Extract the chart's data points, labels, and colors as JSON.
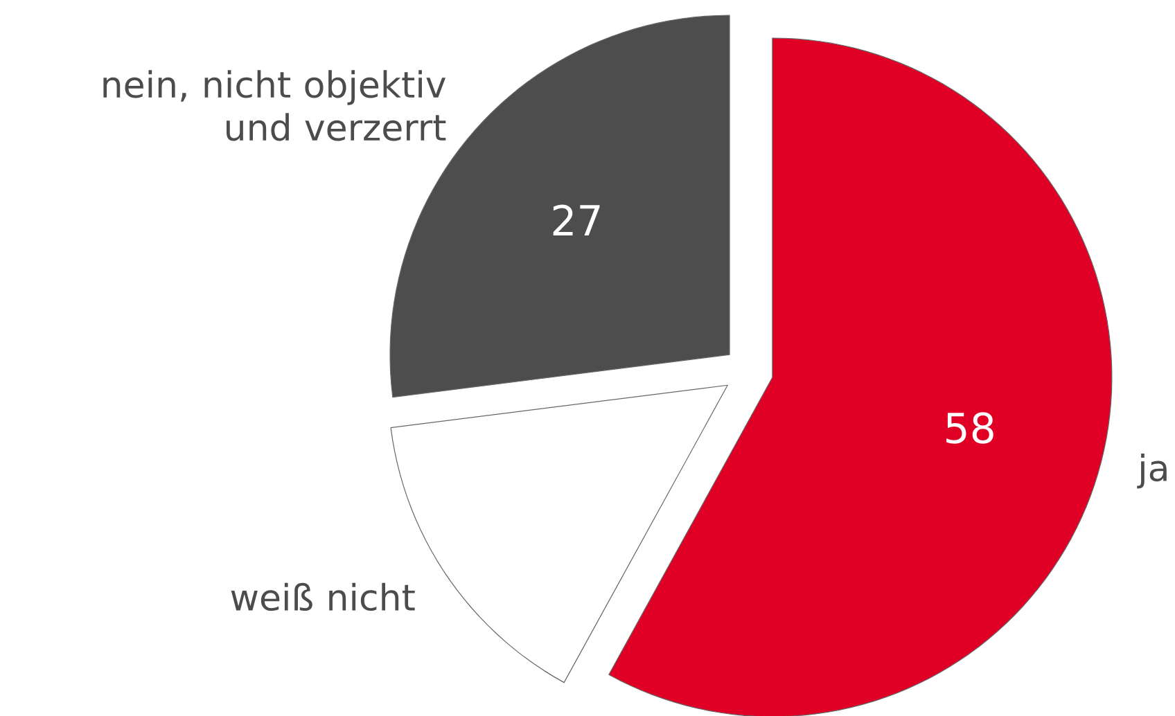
{
  "chart_data": {
    "type": "pie",
    "categories": [
      "ja",
      "weiß nicht",
      "nein, nicht objektiv und verzerrt"
    ],
    "values": [
      58,
      15,
      27
    ],
    "value_labels": [
      "58",
      null,
      "27"
    ],
    "colors": [
      "#e00025",
      "#ffffff",
      "#4d4d4d"
    ]
  }
}
